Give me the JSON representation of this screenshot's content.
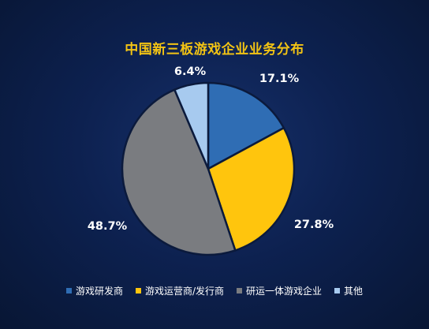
{
  "chart_data": {
    "type": "pie",
    "title": "中国新三板游戏企业业务分布",
    "labels": [
      "游戏研发商",
      "游戏运营商/发行商",
      "研运一体游戏企业",
      "其他"
    ],
    "values": [
      17.1,
      27.8,
      48.7,
      6.4
    ],
    "value_labels": [
      "17.1%",
      "27.8%",
      "48.7%",
      "6.4%"
    ],
    "colors": [
      "#2f6db4",
      "#ffc50d",
      "#7a7c80",
      "#a7caef"
    ],
    "legend_position": "bottom"
  }
}
